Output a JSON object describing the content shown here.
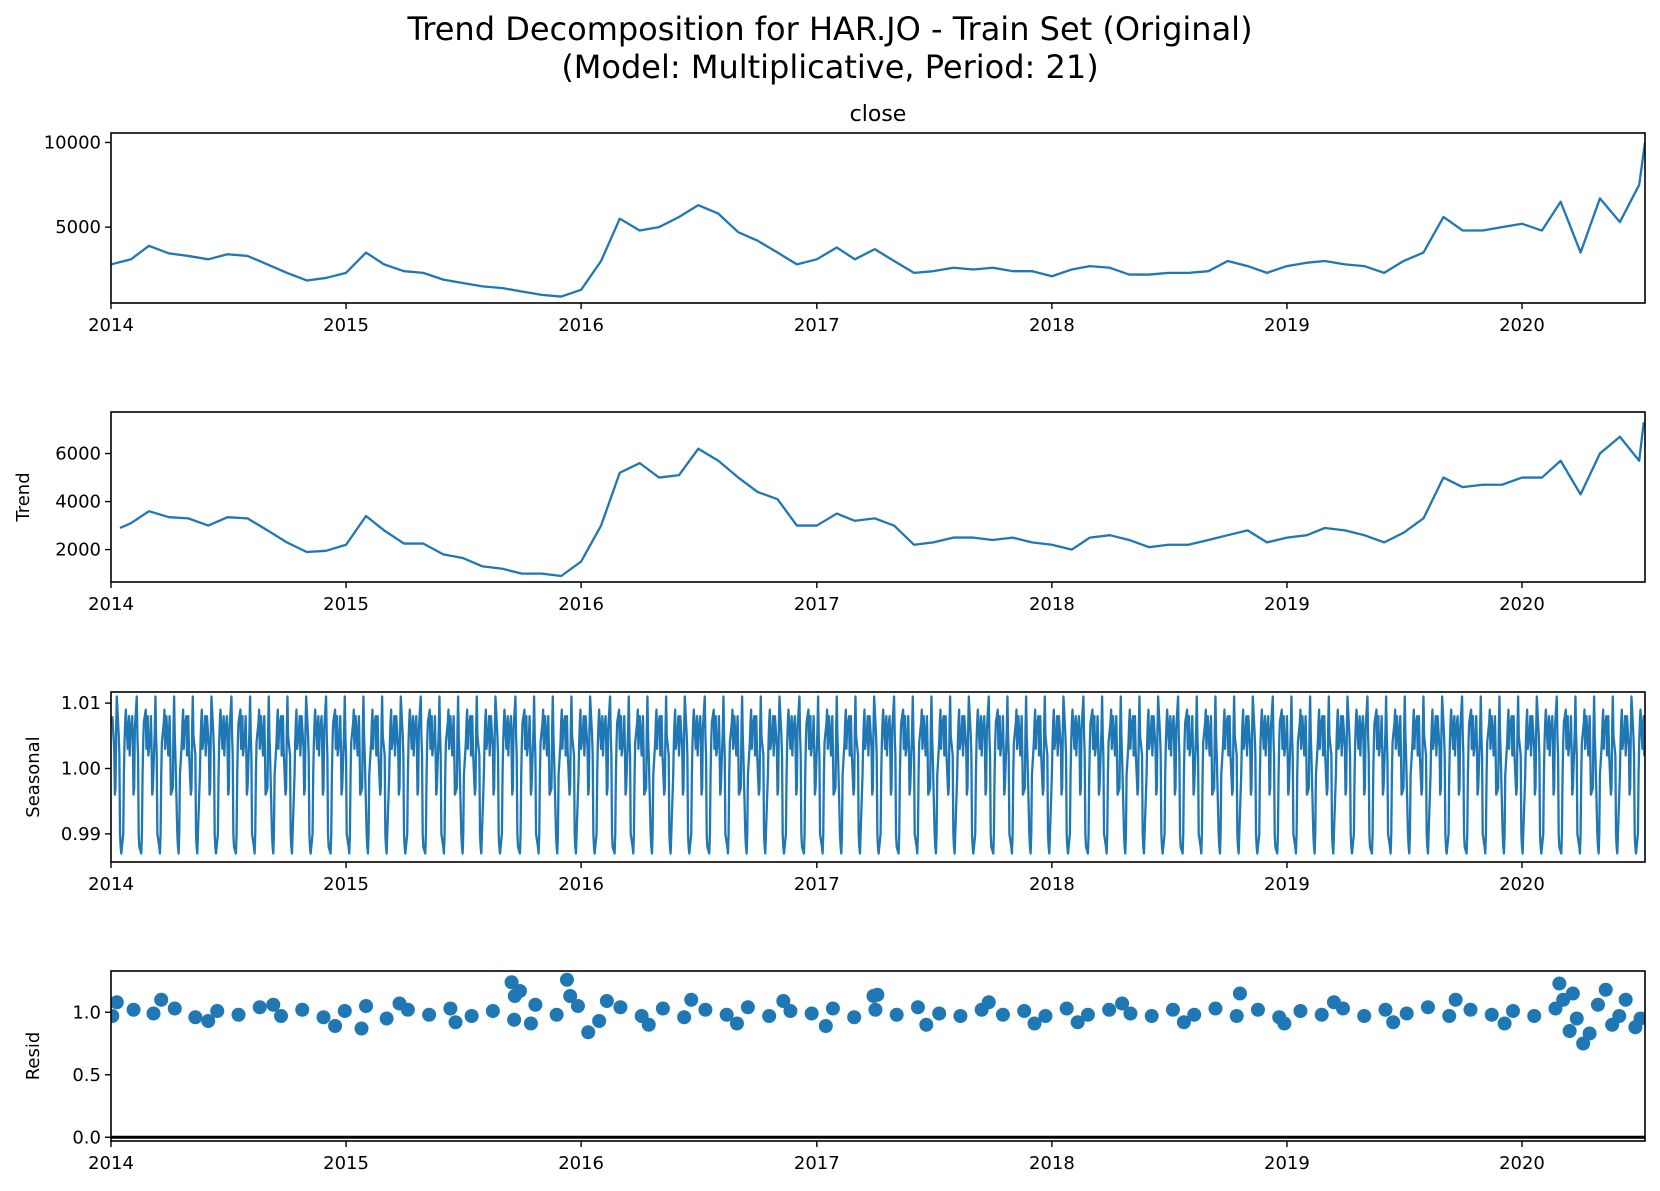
{
  "figure": {
    "title_line1": "Trend Decomposition for HAR.JO - Train Set (Original)",
    "title_line2": "(Model: Multiplicative, Period: 21)"
  },
  "colors": {
    "series": "#1f77b4",
    "axis": "#000000"
  },
  "chart_data": [
    {
      "type": "line",
      "title": "close",
      "ylabel": "",
      "xlim": [
        "2014-01-01",
        "2020-07-10"
      ],
      "ylim": [
        520,
        10560
      ],
      "x_ticks": [
        "2014",
        "2015",
        "2016",
        "2017",
        "2018",
        "2019",
        "2020"
      ],
      "y_ticks": [
        5000,
        10000
      ],
      "series": [
        {
          "x": [
            "2014-01-01",
            "2014-02-01",
            "2014-03-01",
            "2014-04-01",
            "2014-05-01",
            "2014-06-01",
            "2014-07-01",
            "2014-08-01",
            "2014-09-01",
            "2014-10-01",
            "2014-11-01",
            "2014-12-01",
            "2015-01-01",
            "2015-02-01",
            "2015-03-01",
            "2015-04-01",
            "2015-05-01",
            "2015-06-01",
            "2015-07-01",
            "2015-08-01",
            "2015-09-01",
            "2015-10-01",
            "2015-11-01",
            "2015-12-01",
            "2016-01-01",
            "2016-02-01",
            "2016-03-01",
            "2016-04-01",
            "2016-05-01",
            "2016-06-01",
            "2016-07-01",
            "2016-08-01",
            "2016-09-01",
            "2016-10-01",
            "2016-11-01",
            "2016-12-01",
            "2017-01-01",
            "2017-02-01",
            "2017-03-01",
            "2017-04-01",
            "2017-05-01",
            "2017-06-01",
            "2017-07-01",
            "2017-08-01",
            "2017-09-01",
            "2017-10-01",
            "2017-11-01",
            "2017-12-01",
            "2018-01-01",
            "2018-02-01",
            "2018-03-01",
            "2018-04-01",
            "2018-05-01",
            "2018-06-01",
            "2018-07-01",
            "2018-08-01",
            "2018-09-01",
            "2018-10-01",
            "2018-11-01",
            "2018-12-01",
            "2019-01-01",
            "2019-02-01",
            "2019-03-01",
            "2019-04-01",
            "2019-05-01",
            "2019-06-01",
            "2019-07-01",
            "2019-08-01",
            "2019-09-01",
            "2019-10-01",
            "2019-11-01",
            "2019-12-01",
            "2020-01-01",
            "2020-02-01",
            "2020-03-01",
            "2020-04-01",
            "2020-05-01",
            "2020-06-01",
            "2020-07-01",
            "2020-07-10"
          ],
          "y": [
            2800,
            3100,
            3900,
            3450,
            3300,
            3100,
            3400,
            3300,
            2800,
            2300,
            1850,
            2000,
            2300,
            3500,
            2800,
            2400,
            2300,
            1900,
            1700,
            1500,
            1400,
            1200,
            1000,
            900,
            1300,
            3000,
            5500,
            4800,
            5000,
            5600,
            6300,
            5800,
            4700,
            4200,
            3500,
            2800,
            3100,
            3800,
            3100,
            3700,
            3000,
            2300,
            2400,
            2600,
            2500,
            2600,
            2400,
            2400,
            2100,
            2500,
            2700,
            2600,
            2200,
            2200,
            2300,
            2300,
            2400,
            3000,
            2700,
            2300,
            2700,
            2900,
            3000,
            2800,
            2700,
            2300,
            3000,
            3500,
            5600,
            4800,
            4800,
            5000,
            5200,
            4800,
            6500,
            3500,
            6700,
            5300,
            7500,
            10000
          ]
        }
      ]
    },
    {
      "type": "line",
      "title": "",
      "ylabel": "Trend",
      "xlim": [
        "2014-01-01",
        "2020-07-10"
      ],
      "ylim": [
        650,
        7730
      ],
      "x_ticks": [
        "2014",
        "2015",
        "2016",
        "2017",
        "2018",
        "2019",
        "2020"
      ],
      "y_ticks": [
        2000,
        4000,
        6000
      ],
      "series": [
        {
          "x": [
            "2014-01-15",
            "2014-02-01",
            "2014-03-01",
            "2014-04-01",
            "2014-05-01",
            "2014-06-01",
            "2014-07-01",
            "2014-08-01",
            "2014-09-01",
            "2014-10-01",
            "2014-11-01",
            "2014-12-01",
            "2015-01-01",
            "2015-02-01",
            "2015-03-01",
            "2015-04-01",
            "2015-05-01",
            "2015-06-01",
            "2015-07-01",
            "2015-08-01",
            "2015-09-01",
            "2015-10-01",
            "2015-11-01",
            "2015-12-01",
            "2016-01-01",
            "2016-02-01",
            "2016-03-01",
            "2016-04-01",
            "2016-05-01",
            "2016-06-01",
            "2016-07-01",
            "2016-08-01",
            "2016-09-01",
            "2016-10-01",
            "2016-11-01",
            "2016-12-01",
            "2017-01-01",
            "2017-02-01",
            "2017-03-01",
            "2017-04-01",
            "2017-05-01",
            "2017-06-01",
            "2017-07-01",
            "2017-08-01",
            "2017-09-01",
            "2017-10-01",
            "2017-11-01",
            "2017-12-01",
            "2018-01-01",
            "2018-02-01",
            "2018-03-01",
            "2018-04-01",
            "2018-05-01",
            "2018-06-01",
            "2018-07-01",
            "2018-08-01",
            "2018-09-01",
            "2018-10-01",
            "2018-11-01",
            "2018-12-01",
            "2019-01-01",
            "2019-02-01",
            "2019-03-01",
            "2019-04-01",
            "2019-05-01",
            "2019-06-01",
            "2019-07-01",
            "2019-08-01",
            "2019-09-01",
            "2019-10-01",
            "2019-11-01",
            "2019-12-01",
            "2020-01-01",
            "2020-02-01",
            "2020-03-01",
            "2020-04-01",
            "2020-05-01",
            "2020-06-01",
            "2020-07-01",
            "2020-07-08"
          ],
          "y": [
            2900,
            3100,
            3600,
            3350,
            3300,
            3000,
            3350,
            3300,
            2800,
            2300,
            1900,
            1950,
            2200,
            3400,
            2800,
            2250,
            2250,
            1800,
            1650,
            1300,
            1200,
            1000,
            1000,
            900,
            1500,
            3000,
            5200,
            5600,
            5000,
            5100,
            6200,
            5700,
            5000,
            4400,
            4100,
            3000,
            3000,
            3500,
            3200,
            3300,
            3000,
            2200,
            2300,
            2500,
            2500,
            2400,
            2500,
            2300,
            2200,
            2000,
            2500,
            2600,
            2400,
            2100,
            2200,
            2200,
            2400,
            2600,
            2800,
            2300,
            2500,
            2600,
            2900,
            2800,
            2600,
            2300,
            2700,
            3300,
            5000,
            4600,
            4700,
            4700,
            5000,
            5000,
            5700,
            4300,
            6000,
            6700,
            5700,
            7300
          ]
        }
      ]
    },
    {
      "type": "line",
      "title": "",
      "ylabel": "Seasonal",
      "xlim": [
        "2014-01-01",
        "2020-07-10"
      ],
      "ylim": [
        0.9857,
        1.0117
      ],
      "x_ticks": [
        "2014",
        "2015",
        "2016",
        "2017",
        "2018",
        "2019",
        "2020"
      ],
      "y_ticks": [
        0.99,
        1.0,
        1.01
      ],
      "period": 21,
      "series": [
        {
          "cycle": [
            1.008,
            1.003,
            0.996,
            0.997,
            1.006,
            1.011,
            1.005,
            1.002,
            0.99,
            0.988,
            0.987,
            0.99,
            0.999,
            1.004,
            1.007,
            1.009,
            1.003,
            1.006,
            1.008,
            1.002,
            1.005
          ]
        }
      ]
    },
    {
      "type": "scatter",
      "title": "",
      "ylabel": "Resid",
      "xlim": [
        "2014-01-01",
        "2020-07-10"
      ],
      "ylim": [
        -0.03,
        1.33
      ],
      "x_ticks": [
        "2014",
        "2015",
        "2016",
        "2017",
        "2018",
        "2019",
        "2020"
      ],
      "y_ticks": [
        0.0,
        0.5,
        1.0
      ],
      "baseline": 0.0,
      "series": [
        {
          "x": [
            "2014-01-03",
            "2014-02-05",
            "2014-03-08",
            "2014-04-10",
            "2014-05-12",
            "2014-06-15",
            "2014-07-18",
            "2014-08-20",
            "2014-09-22",
            "2014-10-25",
            "2014-11-27",
            "2014-12-30",
            "2015-02-01",
            "2015-03-05",
            "2015-04-07",
            "2015-05-10",
            "2015-06-12",
            "2015-07-15",
            "2015-08-17",
            "2015-09-19",
            "2015-10-22",
            "2015-11-24",
            "2015-12-27",
            "2016-01-29",
            "2016-03-02",
            "2016-04-04",
            "2016-05-07",
            "2016-06-09",
            "2016-07-12",
            "2016-08-14",
            "2016-09-16",
            "2016-10-19",
            "2016-11-21",
            "2016-12-24",
            "2017-01-26",
            "2017-02-28",
            "2017-04-02",
            "2017-05-05",
            "2017-06-07",
            "2017-07-10",
            "2017-08-12",
            "2017-09-14",
            "2017-10-17",
            "2017-11-19",
            "2017-12-22",
            "2018-01-24",
            "2018-02-26",
            "2018-03-31",
            "2018-05-03",
            "2018-06-05",
            "2018-07-08",
            "2018-08-10",
            "2018-09-12",
            "2018-10-15",
            "2018-11-17",
            "2018-12-20",
            "2019-01-22",
            "2019-02-24",
            "2019-03-29",
            "2019-05-01",
            "2019-06-03",
            "2019-07-06",
            "2019-08-08",
            "2019-09-10",
            "2019-10-13",
            "2019-11-15",
            "2019-12-18",
            "2020-01-20",
            "2020-02-22",
            "2020-03-26",
            "2020-04-28",
            "2020-05-31",
            "2020-07-03",
            "2014-01-10",
            "2014-03-20",
            "2014-06-01",
            "2014-09-10",
            "2014-12-15",
            "2015-01-25",
            "2015-03-25",
            "2015-06-20",
            "2015-09-15",
            "2015-09-20",
            "2015-09-28",
            "2015-10-15",
            "2015-12-10",
            "2015-12-15",
            "2016-01-12",
            "2016-02-10",
            "2016-04-15",
            "2016-06-20",
            "2016-08-30",
            "2016-11-10",
            "2017-01-15",
            "2017-03-30",
            "2017-04-05",
            "2017-06-20",
            "2017-09-25",
            "2017-12-05",
            "2018-02-10",
            "2018-04-20",
            "2018-07-25",
            "2018-10-20",
            "2018-12-28",
            "2019-03-15",
            "2019-06-15",
            "2019-09-20",
            "2019-12-05",
            "2020-02-28",
            "2020-03-05",
            "2020-03-15",
            "2020-03-20",
            "2020-04-05",
            "2020-04-15",
            "2020-05-10",
            "2020-05-20",
            "2020-06-10",
            "2020-06-25"
          ],
          "y": [
            0.97,
            1.02,
            0.99,
            1.03,
            0.96,
            1.01,
            0.98,
            1.04,
            0.97,
            1.02,
            0.96,
            1.01,
            1.05,
            0.95,
            1.02,
            0.98,
            1.03,
            0.97,
            1.01,
            0.94,
            1.06,
            0.98,
            1.05,
            0.93,
            1.04,
            0.97,
            1.03,
            0.96,
            1.02,
            0.98,
            1.04,
            0.97,
            1.01,
            0.99,
            1.03,
            0.96,
            1.02,
            0.98,
            1.04,
            0.99,
            0.97,
            1.02,
            0.98,
            1.01,
            0.97,
            1.03,
            0.98,
            1.02,
            0.99,
            0.97,
            1.02,
            0.98,
            1.03,
            0.97,
            1.02,
            0.96,
            1.01,
            0.98,
            1.03,
            0.97,
            1.02,
            0.99,
            1.04,
            0.97,
            1.02,
            0.98,
            1.01,
            0.97,
            1.03,
            0.95,
            1.06,
            0.97,
            0.95,
            1.08,
            1.1,
            0.93,
            1.06,
            0.89,
            0.87,
            1.07,
            0.92,
            1.24,
            1.13,
            1.17,
            0.91,
            1.26,
            1.13,
            0.84,
            1.09,
            0.9,
            1.1,
            0.91,
            1.09,
            0.89,
            1.13,
            1.14,
            0.9,
            1.08,
            0.91,
            0.92,
            1.07,
            0.92,
            1.15,
            0.91,
            1.08,
            0.92,
            1.1,
            0.91,
            1.23,
            1.1,
            0.85,
            1.15,
            0.75,
            0.83,
            1.18,
            0.9,
            1.1,
            0.88
          ]
        }
      ]
    }
  ]
}
